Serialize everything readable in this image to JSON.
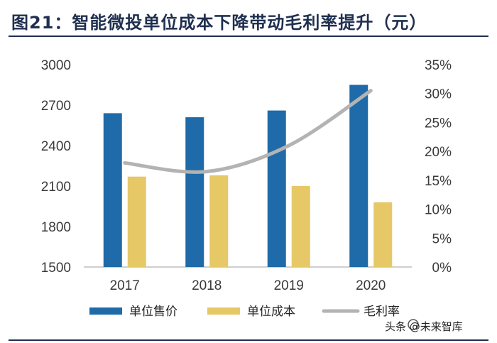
{
  "header": {
    "title": "图21：智能微投单位成本下降带动毛利率提升（元）"
  },
  "chart_data": {
    "type": "bar",
    "title": "图21：智能微投单位成本下降带动毛利率提升（元）",
    "categories": [
      "2017",
      "2018",
      "2019",
      "2020"
    ],
    "series": [
      {
        "name": "单位售价",
        "type": "bar",
        "axis": "left",
        "values": [
          2640,
          2610,
          2660,
          2850
        ],
        "color": "#1f6aa8"
      },
      {
        "name": "单位成本",
        "type": "bar",
        "axis": "left",
        "values": [
          2170,
          2180,
          2100,
          1980
        ],
        "color": "#e6c867"
      },
      {
        "name": "毛利率",
        "type": "line",
        "axis": "right",
        "values": [
          18.0,
          16.5,
          21.0,
          30.5
        ],
        "unit": "%",
        "color": "#b3b3b3"
      }
    ],
    "y_left": {
      "min": 1500,
      "max": 3000,
      "ticks": [
        1500,
        1800,
        2100,
        2400,
        2700,
        3000
      ]
    },
    "y_right": {
      "min": 0,
      "max": 35,
      "ticks": [
        "0%",
        "5%",
        "10%",
        "15%",
        "20%",
        "25%",
        "30%",
        "35%"
      ]
    },
    "legend_position": "bottom"
  },
  "watermark": {
    "text": "头条 @未来智库"
  }
}
